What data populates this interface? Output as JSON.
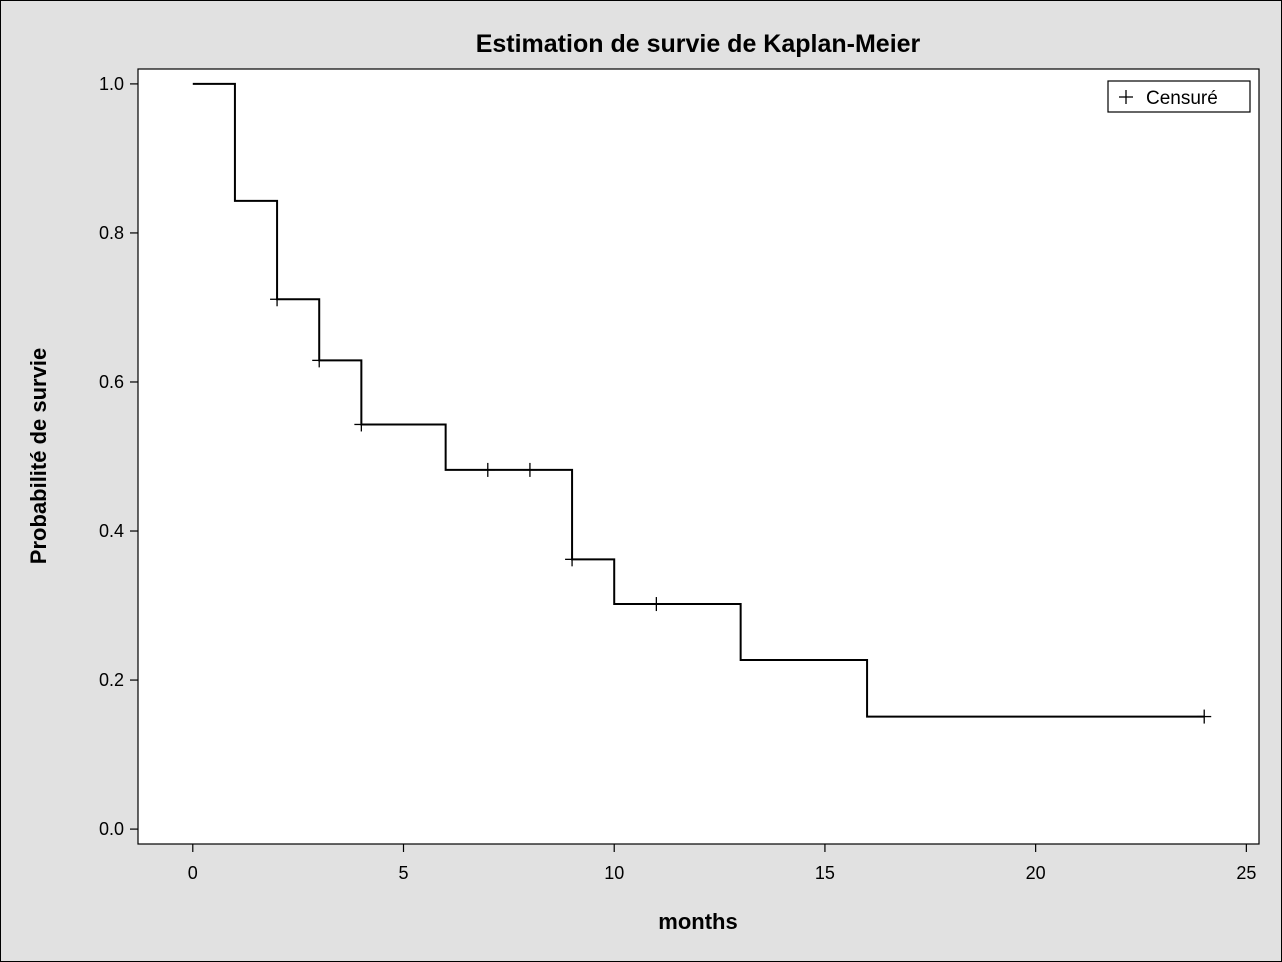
{
  "chart_data": {
    "type": "line",
    "subtype": "step",
    "title": "Estimation de survie de Kaplan-Meier",
    "xlabel": "months",
    "ylabel": "Probabilité de survie",
    "xlim": [
      -1.3,
      25.3
    ],
    "ylim": [
      -0.02,
      1.02
    ],
    "x_ticks": [
      0,
      5,
      10,
      15,
      20,
      25
    ],
    "x_tick_labels": [
      "0",
      "5",
      "10",
      "15",
      "20",
      "25"
    ],
    "y_ticks": [
      0.0,
      0.2,
      0.4,
      0.6,
      0.8,
      1.0
    ],
    "y_tick_labels": [
      "0.0",
      "0.2",
      "0.4",
      "0.6",
      "0.8",
      "1.0"
    ],
    "grid": false,
    "legend": {
      "position": "top-right",
      "entries": [
        {
          "marker": "+",
          "label": "Censuré"
        }
      ]
    },
    "series": [
      {
        "steps": [
          {
            "x": 0,
            "y": 1.0
          },
          {
            "x": 1,
            "y": 0.843
          },
          {
            "x": 2,
            "y": 0.711
          },
          {
            "x": 3,
            "y": 0.629
          },
          {
            "x": 4,
            "y": 0.543
          },
          {
            "x": 6,
            "y": 0.482
          },
          {
            "x": 9,
            "y": 0.362
          },
          {
            "x": 10,
            "y": 0.302
          },
          {
            "x": 13,
            "y": 0.227
          },
          {
            "x": 16,
            "y": 0.151
          }
        ],
        "end_x": 24
      }
    ],
    "censored": [
      {
        "x": 2,
        "y": 0.711
      },
      {
        "x": 3,
        "y": 0.629
      },
      {
        "x": 4,
        "y": 0.543
      },
      {
        "x": 7,
        "y": 0.482
      },
      {
        "x": 8,
        "y": 0.482
      },
      {
        "x": 9,
        "y": 0.362
      },
      {
        "x": 11,
        "y": 0.302
      },
      {
        "x": 24,
        "y": 0.151
      }
    ],
    "colors": {
      "background": "#e1e1e1",
      "plot_area": "#ffffff",
      "line": "#000000"
    }
  }
}
